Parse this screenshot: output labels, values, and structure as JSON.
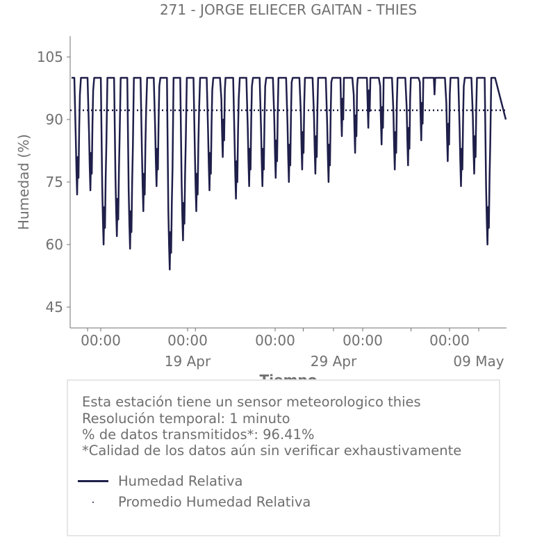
{
  "chart_data": {
    "type": "line",
    "title": "271 - JORGE ELIECER GAITAN - THIES",
    "xlabel": "Tiempo",
    "ylabel": "Humedad (%)",
    "ylim": [
      40,
      110
    ],
    "xlim": [
      "2024-04-09T17:00",
      "2024-05-12T02:00"
    ],
    "yticks": [
      45,
      60,
      75,
      90,
      105
    ],
    "xticks": [
      {
        "x": "2024-04-11T00:00",
        "label": "00:00",
        "sublabel": ""
      },
      {
        "x": "2024-04-19T00:00",
        "label": "00:00",
        "sublabel": "19 Apr"
      },
      {
        "x": "2024-04-27T00:00",
        "label": "00:00",
        "sublabel": ""
      },
      {
        "x": "2024-05-05T00:00",
        "label": "00:00",
        "sublabel": ""
      },
      {
        "x": "2024-05-13T00:00",
        "label": "00:00",
        "sublabel": ""
      }
    ],
    "minor_ticks": [
      "2024-04-29T00:00",
      "2024-05-09T00:00"
    ],
    "minor_labels": [
      {
        "x": "2024-04-29T00:00",
        "label": "29 Apr"
      },
      {
        "x": "2024-05-09T00:00",
        "label": "09 May"
      }
    ],
    "grid": false,
    "series": [
      {
        "name": "Humedad Relativa",
        "color": "#1f1f4a",
        "daily_min": [
          {
            "day": "2024-04-10",
            "min": 72
          },
          {
            "day": "2024-04-11",
            "min": 73
          },
          {
            "day": "2024-04-12",
            "min": 60
          },
          {
            "day": "2024-04-13",
            "min": 62
          },
          {
            "day": "2024-04-14",
            "min": 59
          },
          {
            "day": "2024-04-15",
            "min": 68
          },
          {
            "day": "2024-04-16",
            "min": 74
          },
          {
            "day": "2024-04-17",
            "min": 54
          },
          {
            "day": "2024-04-18",
            "min": 61
          },
          {
            "day": "2024-04-19",
            "min": 68
          },
          {
            "day": "2024-04-20",
            "min": 73
          },
          {
            "day": "2024-04-21",
            "min": 81
          },
          {
            "day": "2024-04-22",
            "min": 71
          },
          {
            "day": "2024-04-23",
            "min": 74
          },
          {
            "day": "2024-04-24",
            "min": 74
          },
          {
            "day": "2024-04-25",
            "min": 76
          },
          {
            "day": "2024-04-26",
            "min": 75
          },
          {
            "day": "2024-04-27",
            "min": 78
          },
          {
            "day": "2024-04-28",
            "min": 77
          },
          {
            "day": "2024-04-29",
            "min": 75
          },
          {
            "day": "2024-04-30",
            "min": 86
          },
          {
            "day": "2024-05-01",
            "min": 82
          },
          {
            "day": "2024-05-02",
            "min": 88
          },
          {
            "day": "2024-05-03",
            "min": 84
          },
          {
            "day": "2024-05-04",
            "min": 78
          },
          {
            "day": "2024-05-05",
            "min": 79
          },
          {
            "day": "2024-05-06",
            "min": 85
          },
          {
            "day": "2024-05-07",
            "min": 96
          },
          {
            "day": "2024-05-08",
            "min": 80
          },
          {
            "day": "2024-05-09",
            "min": 74
          },
          {
            "day": "2024-05-10",
            "min": 77
          },
          {
            "day": "2024-05-11",
            "min": 60
          }
        ],
        "daily_max": 100
      },
      {
        "name": "Promedio Humedad Relativa",
        "color": "#1f1f4a",
        "style": "dotted",
        "value": 92.2
      }
    ]
  },
  "info": {
    "lines": [
      "Esta estación tiene un sensor meteorologico thies",
      "Resolución temporal: 1 minuto",
      "% de datos transmitidos*: 96.41%",
      "*Calidad de los datos aún sin verificar exhaustivamente"
    ]
  },
  "legend": {
    "items": [
      {
        "label": "Humedad Relativa",
        "marker": "line"
      },
      {
        "label": "Promedio Humedad Relativa",
        "marker": "dot"
      }
    ]
  },
  "colors": {
    "series": "#1f1f4a",
    "text": "#707070",
    "axis": "#707070",
    "legend_border": "#e6e6e6"
  }
}
